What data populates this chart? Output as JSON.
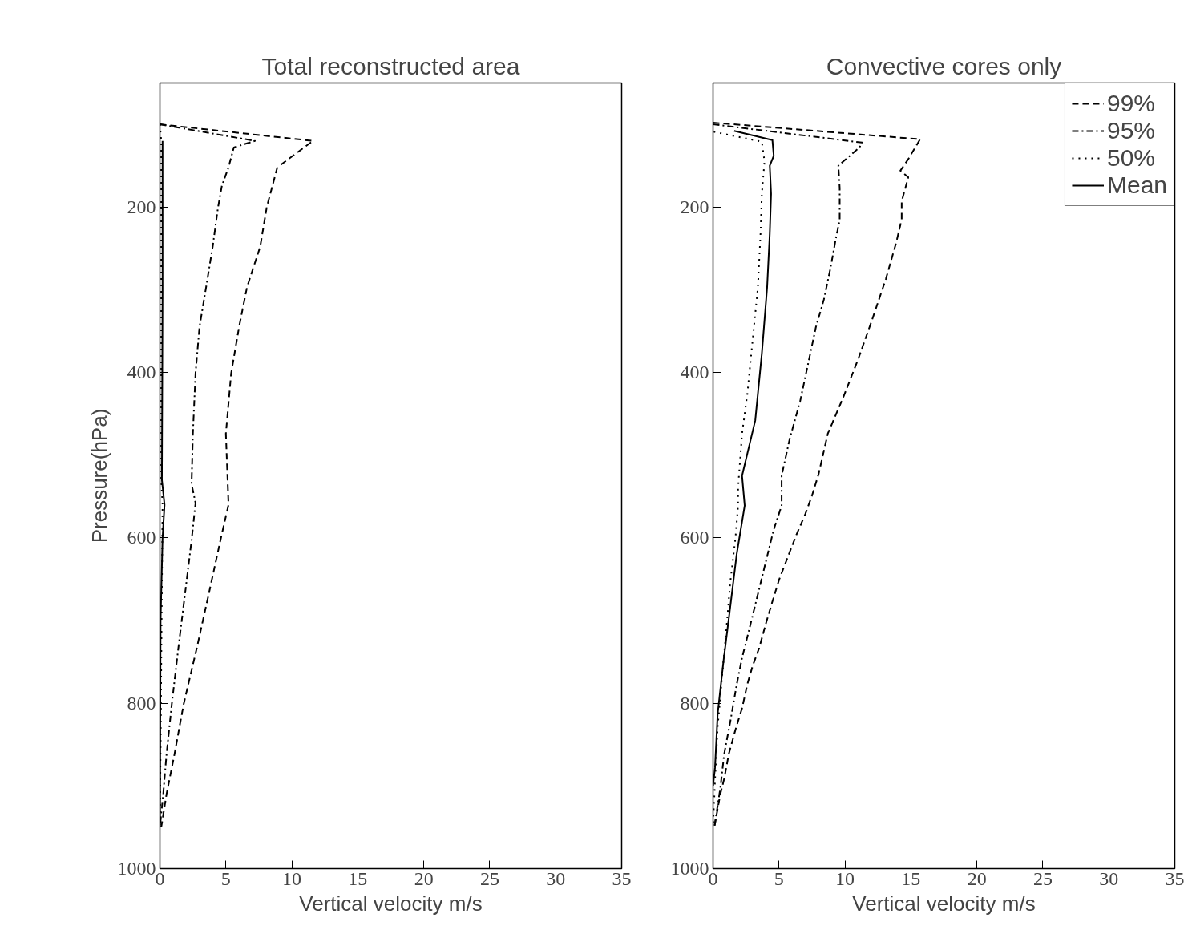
{
  "chart_data": [
    {
      "type": "line",
      "title": "Total reconstructed area",
      "xlabel": "Vertical velocity m/s",
      "ylabel": "Pressure(hPa)",
      "xlim": [
        0,
        35
      ],
      "xticks": [
        0,
        5,
        10,
        15,
        20,
        25,
        30,
        35
      ],
      "ylim": [
        1000,
        50
      ],
      "yticks": [
        200,
        400,
        600,
        800,
        1000
      ],
      "grid": false,
      "legend": false,
      "series": [
        {
          "color": "#000000",
          "line_style": "dashed",
          "x": [
            0,
            11.6,
            8.9,
            8.1,
            7.6,
            6.6,
            6.0,
            5.4,
            5.0,
            5.2,
            4.6,
            3.7,
            2.8,
            1.8,
            1.1,
            0.5,
            0.1
          ],
          "values": [
            100,
            120,
            152,
            200,
            248,
            297,
            345,
            401,
            474,
            560,
            602,
            668,
            733,
            801,
            862,
            910,
            950
          ]
        },
        {
          "color": "#000000",
          "line_style": "dashdot",
          "x": [
            0,
            7.2,
            5.6,
            5.2,
            4.7,
            4.4,
            4.0,
            3.5,
            3.0,
            2.7,
            2.5,
            2.4,
            2.7,
            2.4,
            1.9,
            1.4,
            0.9,
            0.5,
            0.25,
            0
          ],
          "values": [
            100,
            120,
            128,
            152,
            174,
            201,
            248,
            297,
            345,
            401,
            474,
            535,
            558,
            603,
            668,
            733,
            801,
            862,
            910,
            950
          ]
        },
        {
          "color": "#000000",
          "line_style": "dotted",
          "x": [
            0,
            0.1,
            0.1,
            0.2,
            0
          ],
          "values": [
            100,
            120,
            530,
            560,
            950
          ]
        },
        {
          "color": "#000000",
          "line_style": "solid",
          "x": [
            0.2,
            0.2,
            0.15,
            0.35,
            0.2,
            0.05,
            0
          ],
          "values": [
            120,
            300,
            530,
            560,
            600,
            700,
            950
          ]
        }
      ]
    },
    {
      "type": "line",
      "title": "Convective cores only",
      "xlabel": "Vertical velocity m/s",
      "xlim": [
        0,
        35
      ],
      "xticks": [
        0,
        5,
        10,
        15,
        20,
        25,
        30,
        35
      ],
      "ylim": [
        1000,
        50
      ],
      "yticks": [
        200,
        400,
        600,
        800,
        1000
      ],
      "grid": false,
      "legend": "top right",
      "series": [
        {
          "name": "99%",
          "color": "#000000",
          "line_style": "dashed",
          "x": [
            0,
            15.7,
            14.8,
            14.2,
            14.8,
            14.3,
            14.3,
            13.9,
            13.1,
            12.0,
            11.0,
            9.9,
            8.7,
            8.0,
            7.5,
            7.0,
            6.3,
            5.6,
            5.0,
            4.5,
            4.0,
            3.5,
            3.0,
            2.6,
            2.2,
            1.7,
            1.2,
            0.85,
            0.55,
            0.1
          ],
          "values": [
            98,
            118,
            142,
            156,
            164,
            193,
            215,
            242,
            287,
            339,
            384,
            429,
            474,
            523,
            549,
            571,
            597,
            626,
            651,
            677,
            704,
            733,
            755,
            777,
            806,
            832,
            861,
            891,
            910,
            950
          ]
        },
        {
          "name": "95%",
          "color": "#000000",
          "line_style": "dashdot",
          "x": [
            0,
            11.3,
            11.1,
            9.5,
            9.6,
            9.6,
            9.3,
            8.9,
            8.4,
            7.8,
            7.2,
            6.6,
            5.8,
            5.2,
            5.2,
            4.6,
            4.0,
            3.4,
            2.8,
            2.2,
            1.8,
            1.3,
            0.85,
            0.55,
            0.1
          ],
          "values": [
            100,
            122,
            128,
            150,
            177,
            216,
            239,
            274,
            312,
            345,
            390,
            435,
            481,
            525,
            561,
            590,
            629,
            668,
            707,
            745,
            777,
            823,
            861,
            903,
            950
          ]
        },
        {
          "name": "50%",
          "color": "#000000",
          "line_style": "dotted",
          "x": [
            0.05,
            3.7,
            3.9,
            3.7,
            3.6,
            3.4,
            3.0,
            2.6,
            2.2,
            1.9,
            1.9,
            1.7,
            1.3,
            1.0,
            0.7,
            0.35,
            0.15,
            0
          ],
          "values": [
            109,
            121,
            145,
            184,
            232,
            297,
            361,
            426,
            474,
            539,
            561,
            600,
            655,
            713,
            765,
            829,
            893,
            950
          ]
        },
        {
          "name": "Mean",
          "color": "#000000",
          "line_style": "solid",
          "x": [
            1.6,
            4.5,
            4.6,
            4.3,
            4.4,
            4.3,
            4.1,
            3.7,
            3.2,
            2.2,
            2.4,
            1.8,
            1.3,
            0.8,
            0.35,
            0.15,
            0
          ],
          "values": [
            108,
            119,
            138,
            150,
            184,
            232,
            297,
            377,
            458,
            525,
            561,
            619,
            684,
            748,
            813,
            878,
            900
          ]
        }
      ]
    }
  ]
}
